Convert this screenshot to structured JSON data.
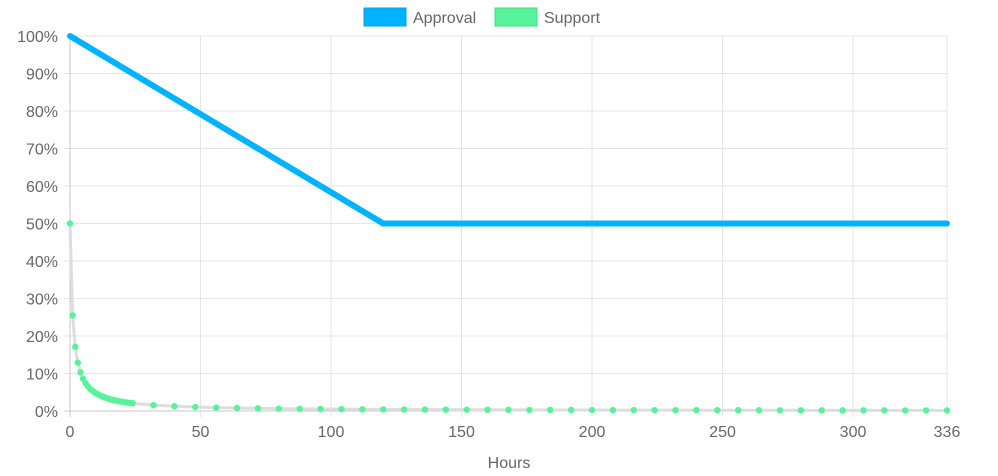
{
  "chart_data": {
    "type": "line",
    "xlabel": "Hours",
    "ylabel": "",
    "xlim": [
      0,
      336
    ],
    "ylim": [
      0,
      100
    ],
    "x_ticks": [
      "0",
      "50",
      "100",
      "150",
      "200",
      "250",
      "300",
      "336"
    ],
    "x_tick_values": [
      0,
      50,
      100,
      150,
      200,
      250,
      300,
      336
    ],
    "y_ticks": [
      "0%",
      "10%",
      "20%",
      "30%",
      "40%",
      "50%",
      "60%",
      "70%",
      "80%",
      "90%",
      "100%"
    ],
    "grid": true,
    "legend_position": "top",
    "series": [
      {
        "name": "Approval",
        "color": "#00b2ff",
        "points": [
          [
            0,
            100
          ],
          [
            120,
            50
          ],
          [
            336,
            50
          ]
        ]
      },
      {
        "name": "Support",
        "color": "#56f39a",
        "points": [
          [
            0,
            50.0
          ],
          [
            1,
            25.49
          ],
          [
            2,
            17.11
          ],
          [
            3,
            12.87
          ],
          [
            4,
            10.32
          ],
          [
            5,
            8.61
          ],
          [
            6,
            7.39
          ],
          [
            7,
            6.47
          ],
          [
            8,
            5.75
          ],
          [
            9,
            5.18
          ],
          [
            10,
            4.71
          ],
          [
            11,
            4.32
          ],
          [
            12,
            3.99
          ],
          [
            13,
            3.7
          ],
          [
            14,
            3.46
          ],
          [
            15,
            3.24
          ],
          [
            16,
            3.05
          ],
          [
            17,
            2.88
          ],
          [
            18,
            2.73
          ],
          [
            19,
            2.59
          ],
          [
            20,
            2.47
          ],
          [
            21,
            2.36
          ],
          [
            22,
            2.26
          ],
          [
            23,
            2.16
          ],
          [
            24,
            2.08
          ],
          [
            32,
            1.57
          ],
          [
            40,
            1.27
          ],
          [
            48,
            1.06
          ],
          [
            56,
            0.91
          ],
          [
            64,
            0.8
          ],
          [
            72,
            0.71
          ],
          [
            80,
            0.64
          ],
          [
            88,
            0.58
          ],
          [
            96,
            0.54
          ],
          [
            104,
            0.49
          ],
          [
            112,
            0.46
          ],
          [
            120,
            0.43
          ],
          [
            128,
            0.4
          ],
          [
            136,
            0.38
          ],
          [
            144,
            0.36
          ],
          [
            152,
            0.34
          ],
          [
            160,
            0.32
          ],
          [
            168,
            0.31
          ],
          [
            176,
            0.29
          ],
          [
            184,
            0.28
          ],
          [
            192,
            0.27
          ],
          [
            200,
            0.26
          ],
          [
            208,
            0.25
          ],
          [
            216,
            0.24
          ],
          [
            224,
            0.23
          ],
          [
            232,
            0.22
          ],
          [
            240,
            0.22
          ],
          [
            248,
            0.21
          ],
          [
            256,
            0.2
          ],
          [
            264,
            0.2
          ],
          [
            272,
            0.19
          ],
          [
            280,
            0.18
          ],
          [
            288,
            0.18
          ],
          [
            296,
            0.17
          ],
          [
            304,
            0.17
          ],
          [
            312,
            0.17
          ],
          [
            320,
            0.16
          ],
          [
            328,
            0.16
          ],
          [
            336,
            0.15
          ]
        ]
      }
    ]
  }
}
